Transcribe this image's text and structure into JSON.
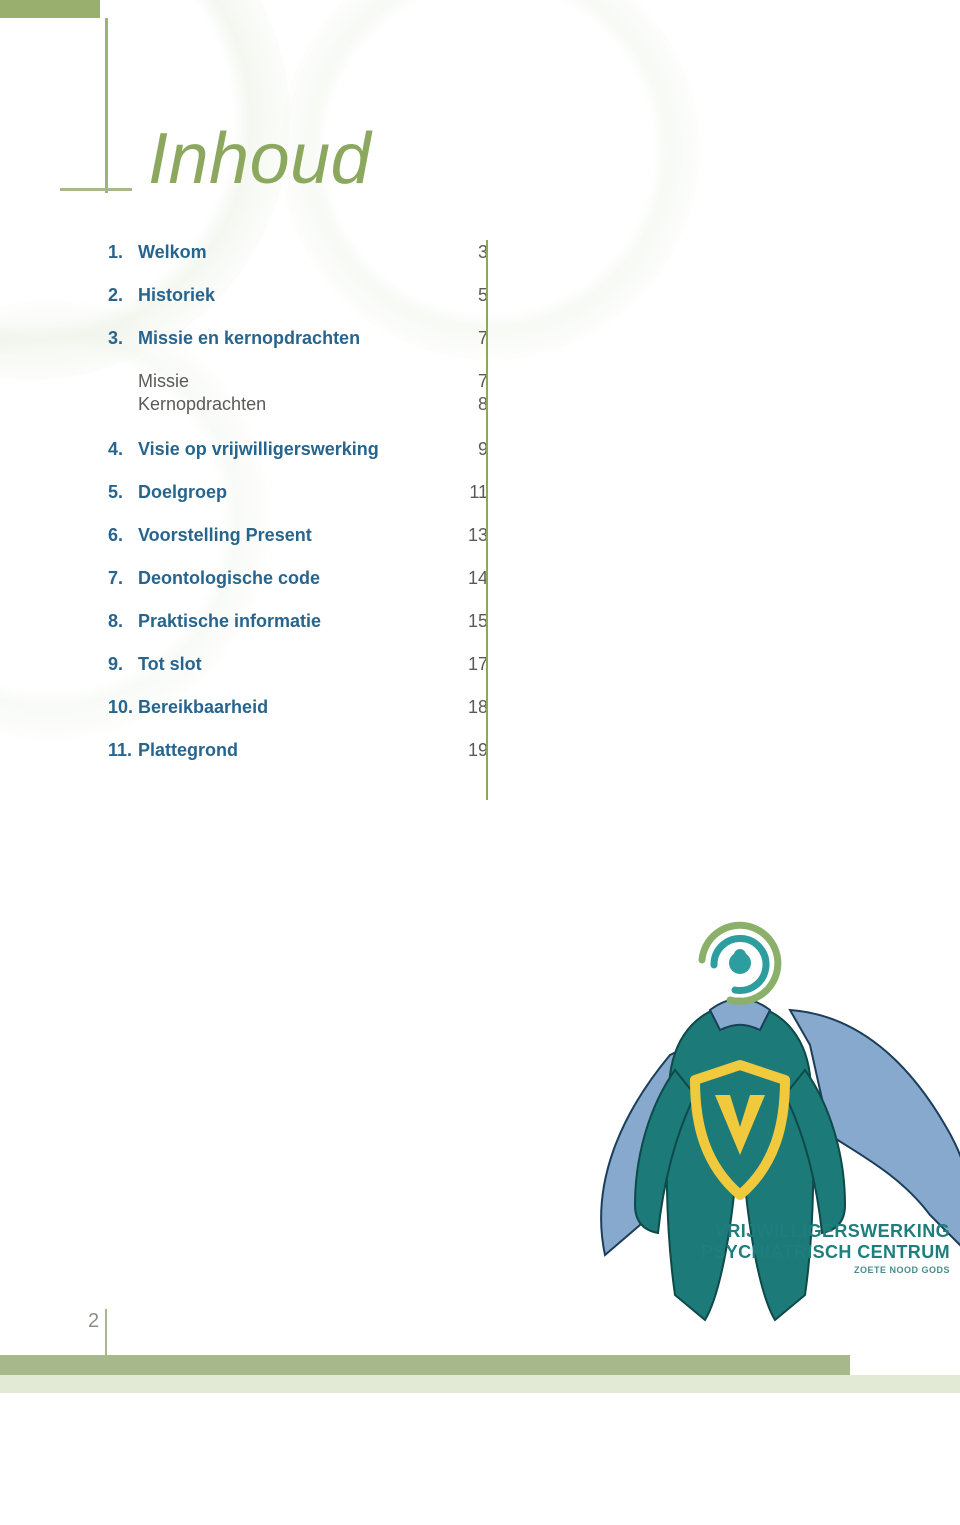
{
  "title": "Inhoud",
  "page_number": "2",
  "colors": {
    "accent_green": "#8ca85f",
    "toc_blue": "#27658e",
    "body_text": "#5a5a58",
    "brand_teal": "#1f7e7d",
    "bar_green": "#a7b98a",
    "bar_light": "#e2e9d5"
  },
  "toc": [
    {
      "num": "1.",
      "label": "Welkom",
      "page": "3",
      "bold": true
    },
    {
      "num": "2.",
      "label": "Historiek",
      "page": "5",
      "bold": true
    },
    {
      "num": "3.",
      "label": "Missie en kernopdrachten",
      "page": "7",
      "bold": true
    },
    {
      "num": "",
      "label": "Missie",
      "page": "7",
      "bold": false
    },
    {
      "num": "",
      "label": "Kernopdrachten",
      "page": "8",
      "bold": false
    },
    {
      "num": "4.",
      "label": "Visie op vrijwilligerswerking",
      "page": "9",
      "bold": true
    },
    {
      "num": "5.",
      "label": "Doelgroep",
      "page": "11",
      "bold": true
    },
    {
      "num": "6.",
      "label": "Voorstelling Present",
      "page": "13",
      "bold": true
    },
    {
      "num": "7.",
      "label": "Deontologische code",
      "page": "14",
      "bold": true
    },
    {
      "num": "8.",
      "label": "Praktische informatie",
      "page": "15",
      "bold": true
    },
    {
      "num": "9.",
      "label": "Tot slot",
      "page": "17",
      "bold": true
    },
    {
      "num": "10.",
      "label": "Bereikbaarheid",
      "page": "18",
      "bold": true
    },
    {
      "num": "11.",
      "label": "Plattegrond",
      "page": "19",
      "bold": true
    }
  ],
  "footer": {
    "line1": "VRIJWILLIGERSWERKING",
    "line2": "PSYCHIATRISCH CENTRUM",
    "line3": "ZOETE NOOD GODS"
  },
  "hero": {
    "body_color": "#1c7a78",
    "cape_color": "#87a9cd",
    "shield_outline": "#f0c93c",
    "shield_fill": "#1c7a78",
    "letter": "V",
    "swirl_inner": "#2c9ea0",
    "swirl_outer": "#8ab06a"
  }
}
